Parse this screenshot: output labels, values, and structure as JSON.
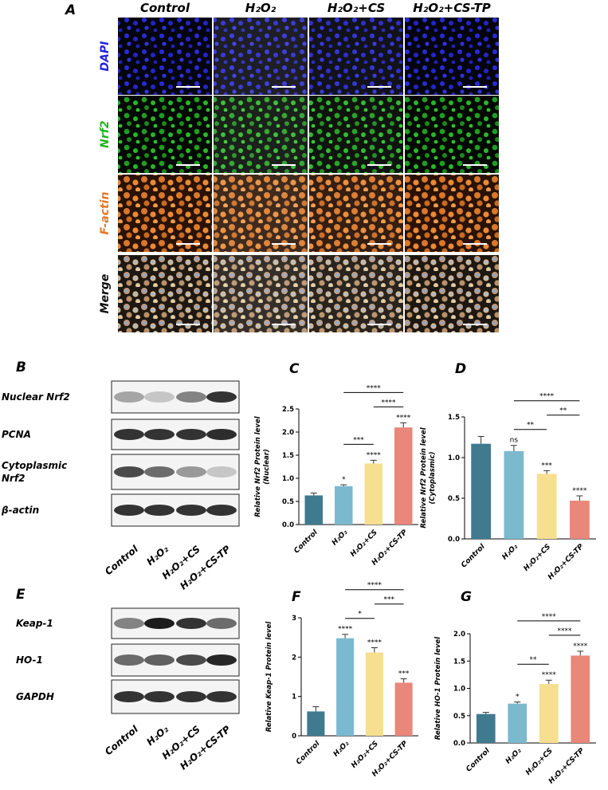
{
  "panel_a": {
    "label": "A",
    "columns": [
      "Control",
      "H₂O₂",
      "H₂O₂+CS",
      "H₂O₂+CS-TP"
    ],
    "rows": [
      {
        "label": "DAPI",
        "color": "#2323e0"
      },
      {
        "label": "Nrf2",
        "color": "#21b521"
      },
      {
        "label": "F-actin",
        "color": "#e0782a"
      },
      {
        "label": "Merge",
        "color": "#111111"
      }
    ]
  },
  "panel_b": {
    "label": "B",
    "rows": [
      [
        "Nuclear Nrf2"
      ],
      [
        "PCNA"
      ],
      [
        "Cytoplasmic",
        "Nrf2"
      ],
      [
        "β-actin"
      ]
    ],
    "lanes": [
      "Control",
      "H₂O₂",
      "H₂O₂+CS",
      "H₂O₂+CS-TP"
    ]
  },
  "panel_e": {
    "label": "E",
    "rows": [
      [
        "Keap-1"
      ],
      [
        "HO-1"
      ],
      [
        "GAPDH"
      ]
    ],
    "lanes": [
      "Control",
      "H₂O₂",
      "H₂O₂+CS",
      "H₂O₂+CS-TP"
    ]
  },
  "chart_data": [
    {
      "type": "bar",
      "panel": "C",
      "y_label": [
        "Relative Nrf2 Protein level",
        "(Nuclear)"
      ],
      "categories": [
        "Control",
        "H₂O₂",
        "H₂O₂+CS",
        "H₂O₂+CS-TP"
      ],
      "values": [
        0.63,
        0.83,
        1.32,
        2.1
      ],
      "errors": [
        0.05,
        0.03,
        0.07,
        0.1
      ],
      "colors": [
        "#3f7a8f",
        "#7bb9cf",
        "#f7df90",
        "#e8877a"
      ],
      "significance": [
        null,
        "*",
        "****",
        "****"
      ],
      "comparisons": [
        {
          "from": 1,
          "to": 2,
          "label": "***"
        },
        {
          "from": 2,
          "to": 3,
          "label": "****"
        },
        {
          "from": 1,
          "to": 3,
          "label": "****"
        }
      ],
      "ylim": [
        0,
        2.5
      ],
      "yticks": [
        {
          "value": 0,
          "label": "0.0"
        },
        0.5,
        {
          "value": 1,
          "label": "1.0"
        },
        1.5,
        {
          "value": 2,
          "label": "2.0"
        },
        2.5
      ]
    },
    {
      "type": "bar",
      "panel": "D",
      "y_label": [
        "Relative Nrf2 Protein level",
        "(Cytoplasmic)"
      ],
      "categories": [
        "Control",
        "H₂O₂",
        "H₂O₂+CS",
        "H₂O₂+CS-TP"
      ],
      "values": [
        1.17,
        1.08,
        0.8,
        0.47
      ],
      "errors": [
        0.09,
        0.07,
        0.04,
        0.06
      ],
      "colors": [
        "#3f7a8f",
        "#7bb9cf",
        "#f7df90",
        "#e8877a"
      ],
      "significance": [
        null,
        "ns",
        "***",
        "****"
      ],
      "comparisons": [
        {
          "from": 1,
          "to": 2,
          "label": "**"
        },
        {
          "from": 2,
          "to": 3,
          "label": "**"
        },
        {
          "from": 1,
          "to": 3,
          "label": "****"
        }
      ],
      "ylim": [
        0,
        1.5
      ],
      "yticks": [
        {
          "value": 0,
          "label": "0.0"
        },
        0.5,
        {
          "value": 1,
          "label": "1.0"
        },
        1.5
      ]
    },
    {
      "type": "bar",
      "panel": "F",
      "y_label": [
        "Relative Keap-1 Protein level"
      ],
      "categories": [
        "Control",
        "H₂O₂",
        "H₂O₂+CS",
        "H₂O₂+CS-TP"
      ],
      "values": [
        0.62,
        2.48,
        2.12,
        1.35
      ],
      "errors": [
        0.12,
        0.1,
        0.12,
        0.1
      ],
      "colors": [
        "#3f7a8f",
        "#7bb9cf",
        "#f7df90",
        "#e8877a"
      ],
      "significance": [
        null,
        "****",
        "****",
        "***"
      ],
      "comparisons": [
        {
          "from": 1,
          "to": 2,
          "label": "*"
        },
        {
          "from": 2,
          "to": 3,
          "label": "***"
        },
        {
          "from": 1,
          "to": 3,
          "label": "****"
        }
      ],
      "ylim": [
        0,
        3
      ],
      "yticks": [
        0,
        1,
        2,
        3
      ]
    },
    {
      "type": "bar",
      "panel": "G",
      "y_label": [
        "Relative HO-1 Protein level"
      ],
      "categories": [
        "Control",
        "H₂O₂",
        "H₂O₂+CS",
        "H₂O₂+CS-TP"
      ],
      "values": [
        0.53,
        0.72,
        1.08,
        1.6
      ],
      "errors": [
        0.03,
        0.03,
        0.07,
        0.08
      ],
      "colors": [
        "#3f7a8f",
        "#7bb9cf",
        "#f7df90",
        "#e8877a"
      ],
      "significance": [
        null,
        "*",
        "****",
        "****"
      ],
      "comparisons": [
        {
          "from": 1,
          "to": 2,
          "label": "**"
        },
        {
          "from": 2,
          "to": 3,
          "label": "****"
        },
        {
          "from": 1,
          "to": 3,
          "label": "****"
        }
      ],
      "ylim": [
        0,
        2
      ],
      "yticks": [
        {
          "value": 0,
          "label": "0.0"
        },
        0.5,
        {
          "value": 1,
          "label": "1.0"
        },
        1.5,
        {
          "value": 2,
          "label": "2.0"
        }
      ]
    }
  ]
}
